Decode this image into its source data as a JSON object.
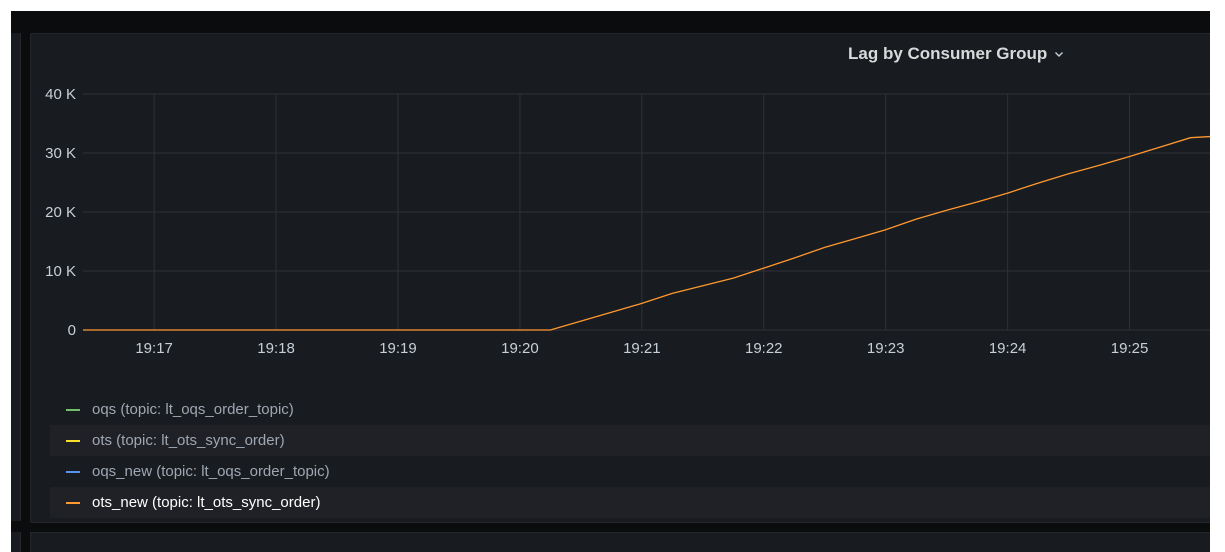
{
  "panel": {
    "title": "Lag by Consumer Group"
  },
  "chart_data": {
    "type": "line",
    "title": "Lag by Consumer Group",
    "xlabel": "",
    "ylabel": "",
    "x_ticks": [
      "19:17",
      "19:18",
      "19:19",
      "19:20",
      "19:21",
      "19:22",
      "19:23",
      "19:24",
      "19:25"
    ],
    "y_ticks": [
      "0",
      "10 K",
      "20 K",
      "30 K",
      "40 K"
    ],
    "ylim": [
      0,
      40000
    ],
    "xlim": [
      "19:16:25",
      "19:25:45"
    ],
    "grid": true,
    "legend_position": "bottom",
    "series": [
      {
        "name": "oqs (topic: lt_oqs_order_topic)",
        "color": "#73bf69",
        "points": []
      },
      {
        "name": "ots (topic: lt_ots_sync_order)",
        "color": "#fade2a",
        "points": []
      },
      {
        "name": "oqs_new (topic: lt_oqs_order_topic)",
        "color": "#5794f2",
        "points": []
      },
      {
        "name": "ots_new (topic: lt_ots_sync_order)",
        "color": "#ff9830",
        "points": [
          [
            "19:16:25",
            0
          ],
          [
            "19:17:00",
            0
          ],
          [
            "19:18:00",
            0
          ],
          [
            "19:19:00",
            0
          ],
          [
            "19:19:30",
            0
          ],
          [
            "19:20:00",
            0
          ],
          [
            "19:20:15",
            0
          ],
          [
            "19:20:30",
            1500
          ],
          [
            "19:20:45",
            3000
          ],
          [
            "19:21:00",
            4500
          ],
          [
            "19:21:15",
            6200
          ],
          [
            "19:21:30",
            7500
          ],
          [
            "19:21:45",
            8800
          ],
          [
            "19:22:00",
            10500
          ],
          [
            "19:22:15",
            12200
          ],
          [
            "19:22:30",
            14000
          ],
          [
            "19:22:45",
            15500
          ],
          [
            "19:23:00",
            17000
          ],
          [
            "19:23:15",
            18800
          ],
          [
            "19:23:30",
            20300
          ],
          [
            "19:23:45",
            21700
          ],
          [
            "19:24:00",
            23200
          ],
          [
            "19:24:15",
            24900
          ],
          [
            "19:24:30",
            26500
          ],
          [
            "19:24:45",
            27900
          ],
          [
            "19:25:00",
            29400
          ],
          [
            "19:25:15",
            31000
          ],
          [
            "19:25:30",
            32600
          ],
          [
            "19:25:45",
            32900
          ]
        ]
      }
    ]
  },
  "legend": {
    "items": [
      {
        "label": "oqs (topic: lt_oqs_order_topic)",
        "color": "#73bf69"
      },
      {
        "label": "ots (topic: lt_ots_sync_order)",
        "color": "#fade2a"
      },
      {
        "label": "oqs_new (topic: lt_oqs_order_topic)",
        "color": "#5794f2"
      },
      {
        "label": "ots_new (topic: lt_ots_sync_order)",
        "color": "#ff9830"
      }
    ]
  }
}
